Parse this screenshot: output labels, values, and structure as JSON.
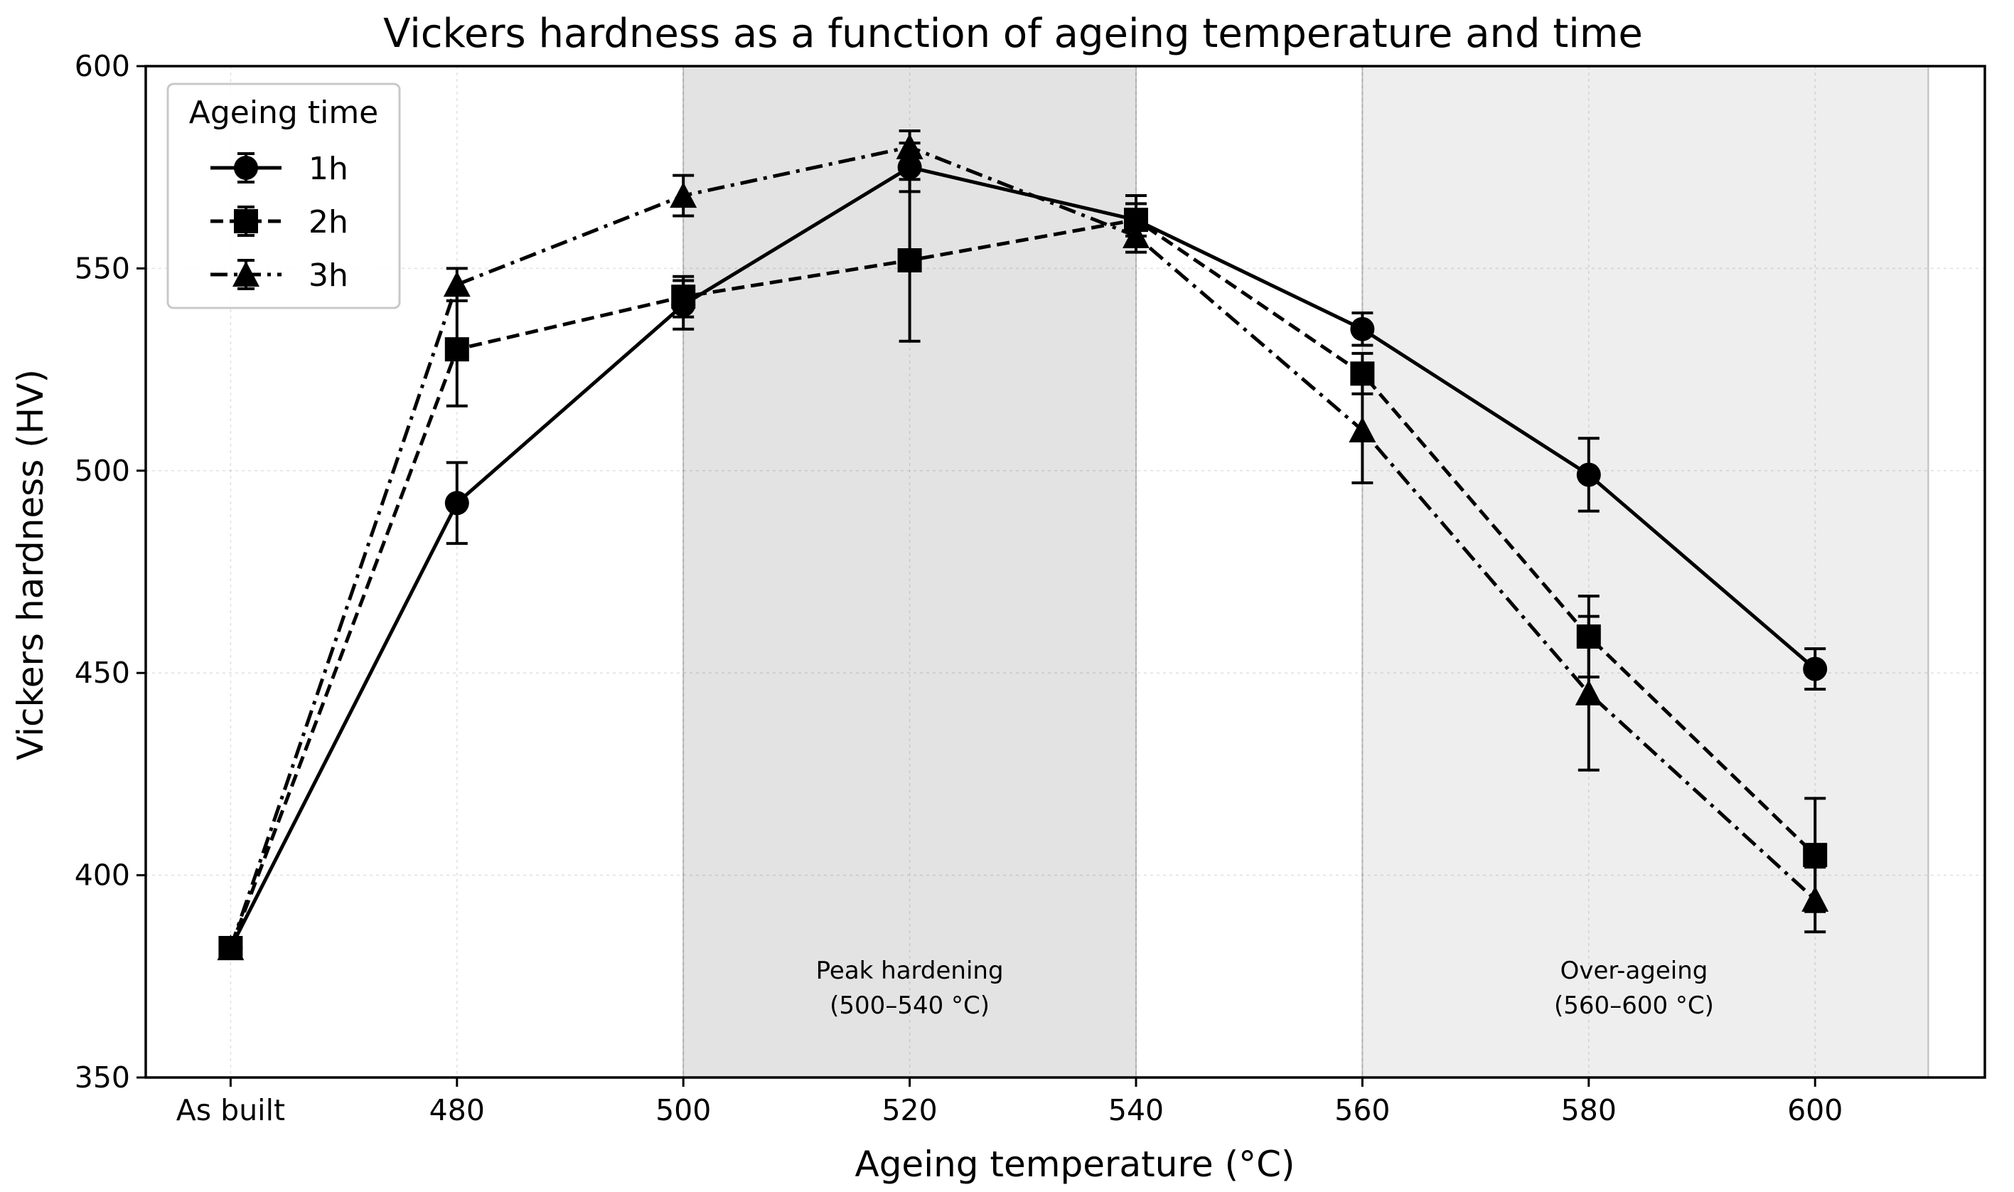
{
  "chart_data": {
    "type": "line",
    "title": "Vickers hardness as a function of ageing temperature and time",
    "xlabel": "Ageing temperature (°C)",
    "ylabel": "Vickers hardness (HV)",
    "categories": [
      "As built",
      "480",
      "500",
      "520",
      "540",
      "560",
      "580",
      "600"
    ],
    "x_positions": [
      460,
      480,
      500,
      520,
      540,
      560,
      580,
      600
    ],
    "xlim": [
      452.5,
      615
    ],
    "ylim": [
      350,
      600
    ],
    "yticks": [
      350,
      400,
      450,
      500,
      550,
      600
    ],
    "grid": true,
    "legend": {
      "title": "Ageing time",
      "placement": "top-left"
    },
    "shaded_regions": [
      {
        "x_start": 500,
        "x_end": 540,
        "color": "#e3e3e3",
        "label_line1": "Peak hardening",
        "label_line2": "(500–540 °C)",
        "label_x": 520
      },
      {
        "x_start": 560,
        "x_end": 610,
        "color": "#eeeeee",
        "label_line1": "Over-ageing",
        "label_line2": "(560–600 °C)",
        "label_x": 584
      }
    ],
    "series": [
      {
        "name": "1h",
        "marker": "circle",
        "linestyle": "solid",
        "values": [
          382,
          492,
          541,
          575,
          562,
          535,
          499,
          451
        ],
        "errors": [
          0,
          10,
          6,
          6,
          4,
          4,
          9,
          5
        ]
      },
      {
        "name": "2h",
        "marker": "square",
        "linestyle": "dashed",
        "values": [
          382,
          530,
          543,
          552,
          562,
          524,
          459,
          405
        ],
        "errors": [
          0,
          14,
          5,
          20,
          6,
          5,
          10,
          14
        ]
      },
      {
        "name": "3h",
        "marker": "triangle",
        "linestyle": "dashdot",
        "values": [
          382,
          546,
          568,
          580,
          558,
          510,
          445,
          394
        ],
        "errors": [
          0,
          4,
          5,
          4,
          4,
          13,
          19,
          8
        ]
      }
    ],
    "colors": {
      "series": "#000000",
      "background": "#ffffff"
    }
  }
}
